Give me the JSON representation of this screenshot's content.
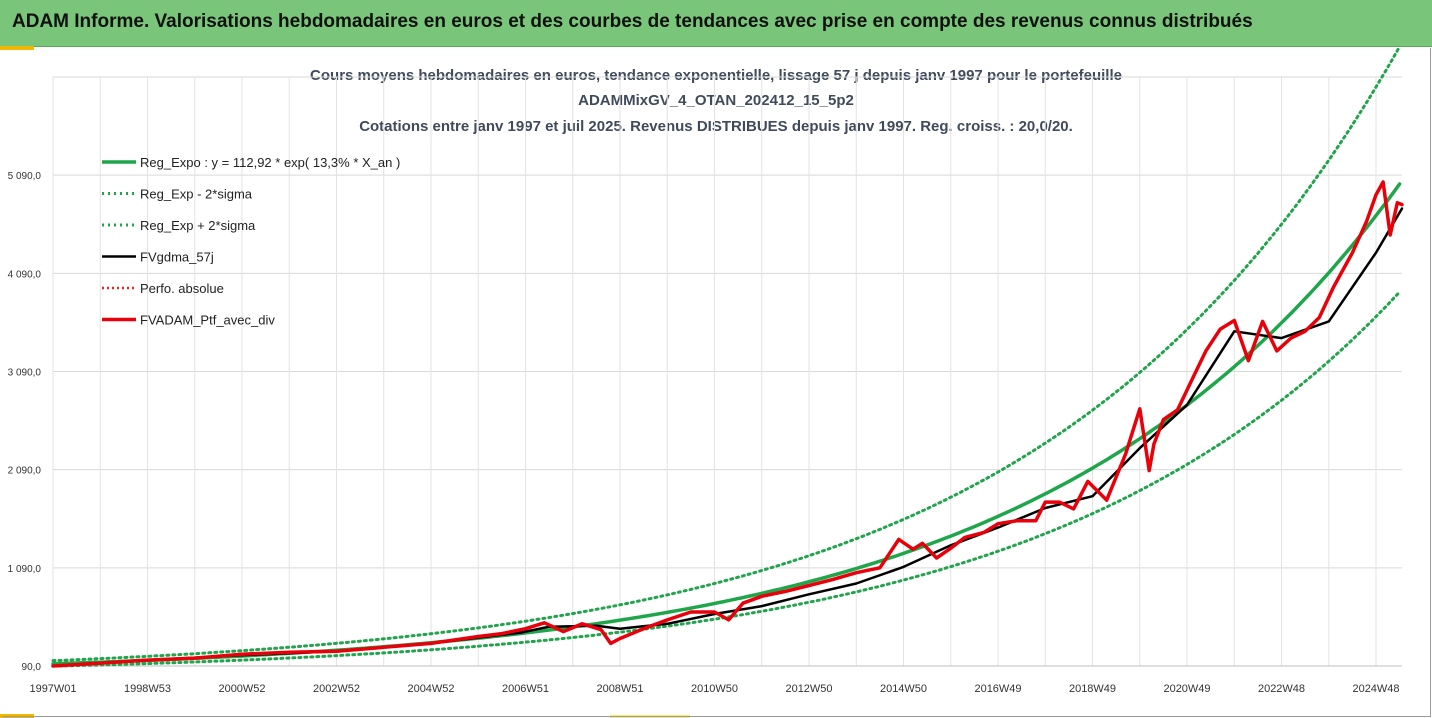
{
  "banner": {
    "title": "ADAM Informe. Valorisations hebdomadaires en euros et des courbes de tendances avec prise en compte des revenus connus distribués"
  },
  "chart_data": {
    "type": "line",
    "title_lines": [
      "Cours moyens hebdomadaires  en euros, tendance exponentielle, lissage 57 j depuis janv 1997 pour le portefeuille",
      "ADAMMixGV_4_OTAN_202412_15_5p2",
      "Cotations  entre janv 1997 et juil 2025. Revenus DISTRIBUES depuis janv 1997. Reg. croiss. : 20,0/20."
    ],
    "x_tick_labels": [
      "1997W01",
      "1998W53",
      "2000W52",
      "2002W52",
      "2004W52",
      "2006W51",
      "2008W51",
      "2010W50",
      "2012W50",
      "2014W50",
      "2016W49",
      "2018W49",
      "2020W49",
      "2022W48",
      "2024W48"
    ],
    "x_tick_years": [
      1997.0,
      1999.0,
      2001.0,
      2003.0,
      2005.0,
      2007.0,
      2009.0,
      2011.0,
      2013.0,
      2015.0,
      2017.0,
      2019.0,
      2021.0,
      2023.0,
      2025.0
    ],
    "x_range": [
      1997.0,
      2025.55
    ],
    "y_tick_labels": [
      "90,0",
      "1 090,0",
      "2 090,0",
      "3 090,0",
      "4 090,0",
      "5 090,0"
    ],
    "y_ticks": [
      90,
      1090,
      2090,
      3090,
      4090,
      5090
    ],
    "y_range": [
      90,
      6090
    ],
    "grid": true,
    "legend_position": "top-left",
    "regression": {
      "a": 112.92,
      "rate": 0.133
    },
    "colors": {
      "trend": "#1fa64a",
      "band": "#22a44c",
      "smooth": "#000000",
      "perf": "#ff1a1a",
      "ptf": "#e8000b"
    },
    "series": [
      {
        "name": "Reg_Expo : y = 112,92 * exp( 13,3% *  X_an )",
        "style": "solid",
        "color": "#1fa64a",
        "kind": "trend"
      },
      {
        "name": "Reg_Exp - 2*sigma",
        "style": "dotted",
        "color": "#22a44c",
        "kind": "lower"
      },
      {
        "name": "Reg_Exp + 2*sigma",
        "style": "dotted",
        "color": "#22a44c",
        "kind": "upper"
      },
      {
        "name": "FVgdma_57j",
        "style": "solid",
        "color": "#000000",
        "kind": "smooth",
        "x": [
          1997.0,
          1999.0,
          2001.0,
          2003.0,
          2005.0,
          2006.9,
          2007.5,
          2008.5,
          2009.0,
          2010.0,
          2011.0,
          2012.0,
          2013.0,
          2014.0,
          2015.0,
          2016.0,
          2017.0,
          2018.0,
          2019.0,
          2020.0,
          2021.0,
          2022.0,
          2023.0,
          2024.0,
          2025.0,
          2025.55
        ],
        "y": [
          90,
          150,
          200,
          240,
          320,
          430,
          490,
          500,
          470,
          520,
          620,
          700,
          820,
          930,
          1100,
          1320,
          1500,
          1700,
          1820,
          2310,
          2750,
          3500,
          3430,
          3600,
          4300,
          4750
        ]
      },
      {
        "name": "Perfo. absolue",
        "style": "dotted",
        "color": "#ff1a1a",
        "kind": "perf"
      },
      {
        "name": "FVADAM_Ptf_avec_div",
        "style": "solid",
        "color": "#e8000b",
        "kind": "ptf",
        "x": [
          1997.0,
          1998.0,
          1999.0,
          2000.0,
          2001.0,
          2002.0,
          2003.0,
          2004.0,
          2005.0,
          2006.0,
          2006.5,
          2007.0,
          2007.4,
          2007.8,
          2008.2,
          2008.6,
          2008.8,
          2009.0,
          2009.5,
          2010.0,
          2010.5,
          2011.0,
          2011.3,
          2011.6,
          2012.0,
          2012.5,
          2013.0,
          2013.5,
          2014.0,
          2014.5,
          2014.9,
          2015.2,
          2015.4,
          2015.7,
          2016.0,
          2016.3,
          2016.7,
          2017.0,
          2017.4,
          2017.8,
          2018.0,
          2018.3,
          2018.6,
          2018.9,
          2019.3,
          2019.7,
          2020.0,
          2020.2,
          2020.3,
          2020.5,
          2020.8,
          2021.1,
          2021.4,
          2021.7,
          2022.0,
          2022.3,
          2022.6,
          2022.9,
          2023.2,
          2023.5,
          2023.8,
          2024.1,
          2024.5,
          2024.8,
          2025.0,
          2025.15,
          2025.3,
          2025.45,
          2025.55
        ],
        "y": [
          90,
          120,
          150,
          170,
          210,
          230,
          240,
          280,
          320,
          390,
          420,
          470,
          530,
          440,
          520,
          460,
          320,
          370,
          470,
          560,
          640,
          640,
          560,
          730,
          800,
          850,
          910,
          970,
          1040,
          1090,
          1380,
          1280,
          1340,
          1190,
          1290,
          1400,
          1450,
          1540,
          1570,
          1570,
          1760,
          1760,
          1690,
          1970,
          1780,
          2250,
          2710,
          2080,
          2350,
          2600,
          2700,
          3000,
          3300,
          3520,
          3610,
          3200,
          3600,
          3300,
          3430,
          3500,
          3640,
          3950,
          4300,
          4620,
          4890,
          5020,
          4480,
          4810,
          4790
        ]
      }
    ]
  }
}
